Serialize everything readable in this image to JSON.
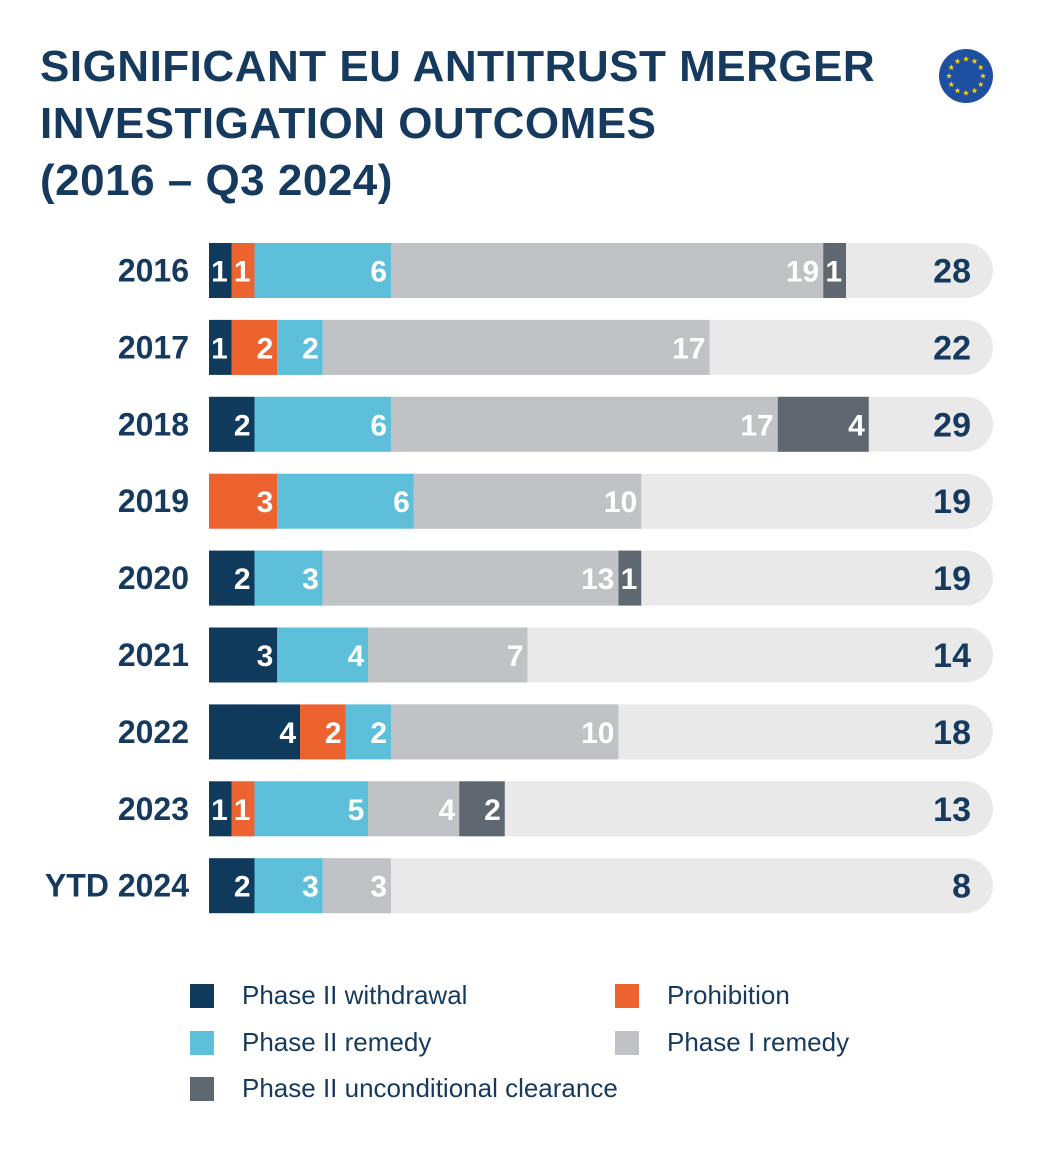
{
  "chart_data": {
    "type": "bar",
    "orientation": "horizontal",
    "stacked": true,
    "title": [
      "SIGNIFICANT EU ANTITRUST MERGER",
      "INVESTIGATION OUTCOMES",
      "(2016 – Q3 2024)"
    ],
    "categories": [
      "2016",
      "2017",
      "2018",
      "2019",
      "2020",
      "2021",
      "2022",
      "2023",
      "YTD 2024"
    ],
    "series": [
      {
        "name": "Phase II withdrawal",
        "color": "#0f3a5c",
        "values": [
          1,
          1,
          2,
          0,
          2,
          3,
          4,
          1,
          2
        ]
      },
      {
        "name": "Prohibition",
        "color": "#ec6330",
        "values": [
          1,
          2,
          0,
          3,
          0,
          0,
          2,
          1,
          0
        ]
      },
      {
        "name": "Phase II remedy",
        "color": "#5ebfdb",
        "values": [
          6,
          2,
          6,
          6,
          3,
          4,
          2,
          5,
          3
        ]
      },
      {
        "name": "Phase I remedy",
        "color": "#c0c2c5",
        "values": [
          19,
          17,
          17,
          10,
          13,
          7,
          10,
          4,
          3
        ]
      },
      {
        "name": "Phase II unconditional clearance",
        "color": "#5f6770",
        "values": [
          1,
          0,
          4,
          0,
          1,
          0,
          0,
          2,
          0
        ]
      }
    ],
    "totals": [
      28,
      22,
      29,
      19,
      19,
      14,
      18,
      13,
      8
    ],
    "legend_position": "bottom",
    "grid": false
  },
  "legend_rows": [
    [
      0,
      1
    ],
    [
      2,
      3
    ],
    [
      4
    ]
  ],
  "track_color": "#e9e9ea",
  "text_color": "#163a5e",
  "flag": {
    "background": "#1f4fa0",
    "star_color": "#f3d21a",
    "stars": 12
  }
}
